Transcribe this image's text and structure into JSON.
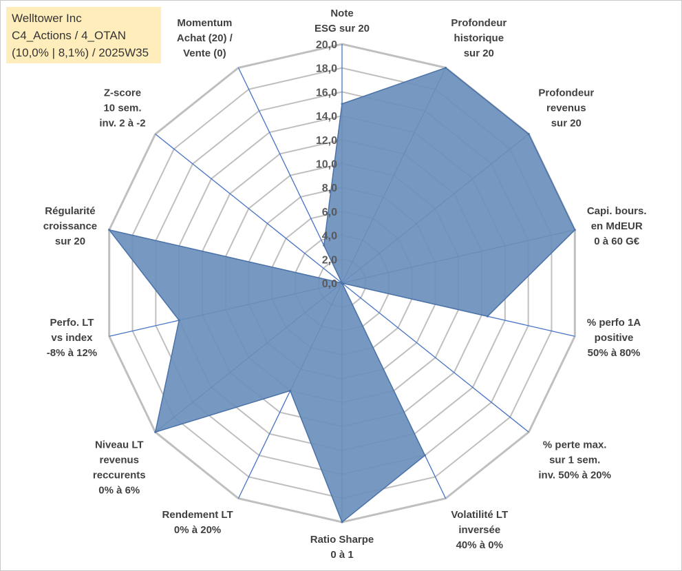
{
  "info_box": {
    "line1": "Welltower Inc",
    "line2": "C4_Actions / 4_OTAN",
    "line3": "(10,0% | 8,1%) / 2025W35"
  },
  "chart_data": {
    "type": "radar",
    "rmin": 0,
    "rmax": 20,
    "ticks": [
      "0,0",
      "2,0",
      "4,0",
      "6,0",
      "8,0",
      "10,0",
      "12,0",
      "14,0",
      "16,0",
      "18,0",
      "20,0"
    ],
    "grid": true,
    "colors": {
      "fill": "#6b8fbb",
      "stroke": "#4a72a8",
      "grid": "#bfbfbf",
      "spoke": "#4472c4"
    },
    "axes": [
      {
        "lines": [
          "Note",
          "ESG sur 20"
        ]
      },
      {
        "lines": [
          "Profondeur",
          "historique",
          "sur 20"
        ]
      },
      {
        "lines": [
          "Profondeur",
          "revenus",
          "sur 20"
        ]
      },
      {
        "lines": [
          "Capi. bours.",
          "en MdEUR",
          "0 à 60 G€"
        ]
      },
      {
        "lines": [
          "% perfo 1A",
          "positive",
          "50% à 80%"
        ]
      },
      {
        "lines": [
          "% perte max.",
          "sur 1 sem.",
          "inv. 50% à 20%"
        ]
      },
      {
        "lines": [
          "Volatilité LT",
          "inversée",
          "40% à 0%"
        ]
      },
      {
        "lines": [
          "Ratio Sharpe",
          "0 à 1"
        ]
      },
      {
        "lines": [
          "Rendement LT",
          "0% à 20%"
        ]
      },
      {
        "lines": [
          "Niveau LT",
          "revenus",
          "reccurents",
          "0% à 6%"
        ]
      },
      {
        "lines": [
          "Perfo. LT",
          "vs index",
          "-8% à 12%"
        ]
      },
      {
        "lines": [
          "Régularité",
          "croissance",
          "sur 20"
        ]
      },
      {
        "lines": [
          "Z-score",
          "10 sem.",
          "inv. 2 à -2"
        ]
      },
      {
        "lines": [
          "Momentum",
          "Achat (20) /",
          "Vente (0)"
        ]
      }
    ],
    "series": [
      {
        "values": [
          15,
          20,
          20,
          20,
          12.5,
          0,
          16,
          20,
          10,
          20,
          14,
          20,
          0,
          3.5
        ]
      }
    ]
  }
}
